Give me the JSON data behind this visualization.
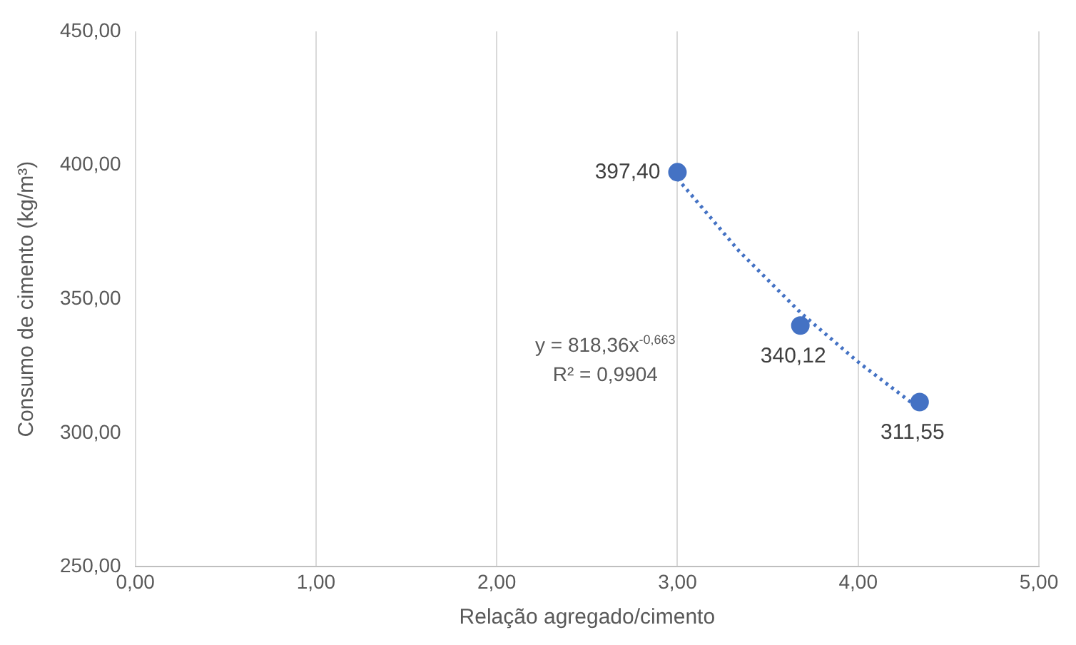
{
  "chart_data": {
    "type": "scatter",
    "xlabel": "Relação agregado/cimento",
    "ylabel": "Consumo de cimento (kg/m³)",
    "xlim": [
      0,
      5
    ],
    "xticks": [
      {
        "value": 0,
        "label": "0,00"
      },
      {
        "value": 1,
        "label": "1,00"
      },
      {
        "value": 2,
        "label": "2,00"
      },
      {
        "value": 3,
        "label": "3,00"
      },
      {
        "value": 4,
        "label": "4,00"
      },
      {
        "value": 5,
        "label": "5,00"
      }
    ],
    "ylim": [
      250,
      450
    ],
    "yticks": [
      {
        "value": 250,
        "label": "250,00"
      },
      {
        "value": 300,
        "label": "300,00"
      },
      {
        "value": 350,
        "label": "350,00"
      },
      {
        "value": 400,
        "label": "400,00"
      },
      {
        "value": 450,
        "label": "450,00"
      }
    ],
    "grid": "x",
    "legend": false,
    "marker": "circle",
    "series": [
      {
        "color": "#4472c4",
        "x": [
          3.0,
          3.68,
          4.34
        ],
        "values": [
          397.4,
          340.12,
          311.55
        ],
        "value_labels": [
          "397,40",
          "340,12",
          "311,55"
        ]
      },
      {
        "type": "line",
        "color": "#4472c4",
        "line_style": "dotted",
        "marker": "none",
        "x": [
          3.0,
          3.34,
          3.68,
          4.0,
          4.34
        ],
        "values": [
          395,
          368,
          345,
          326.5,
          309
        ]
      }
    ],
    "annotations": [
      "y = 818,36x$^{-0,663}$",
      "R² = 0,9904"
    ]
  }
}
